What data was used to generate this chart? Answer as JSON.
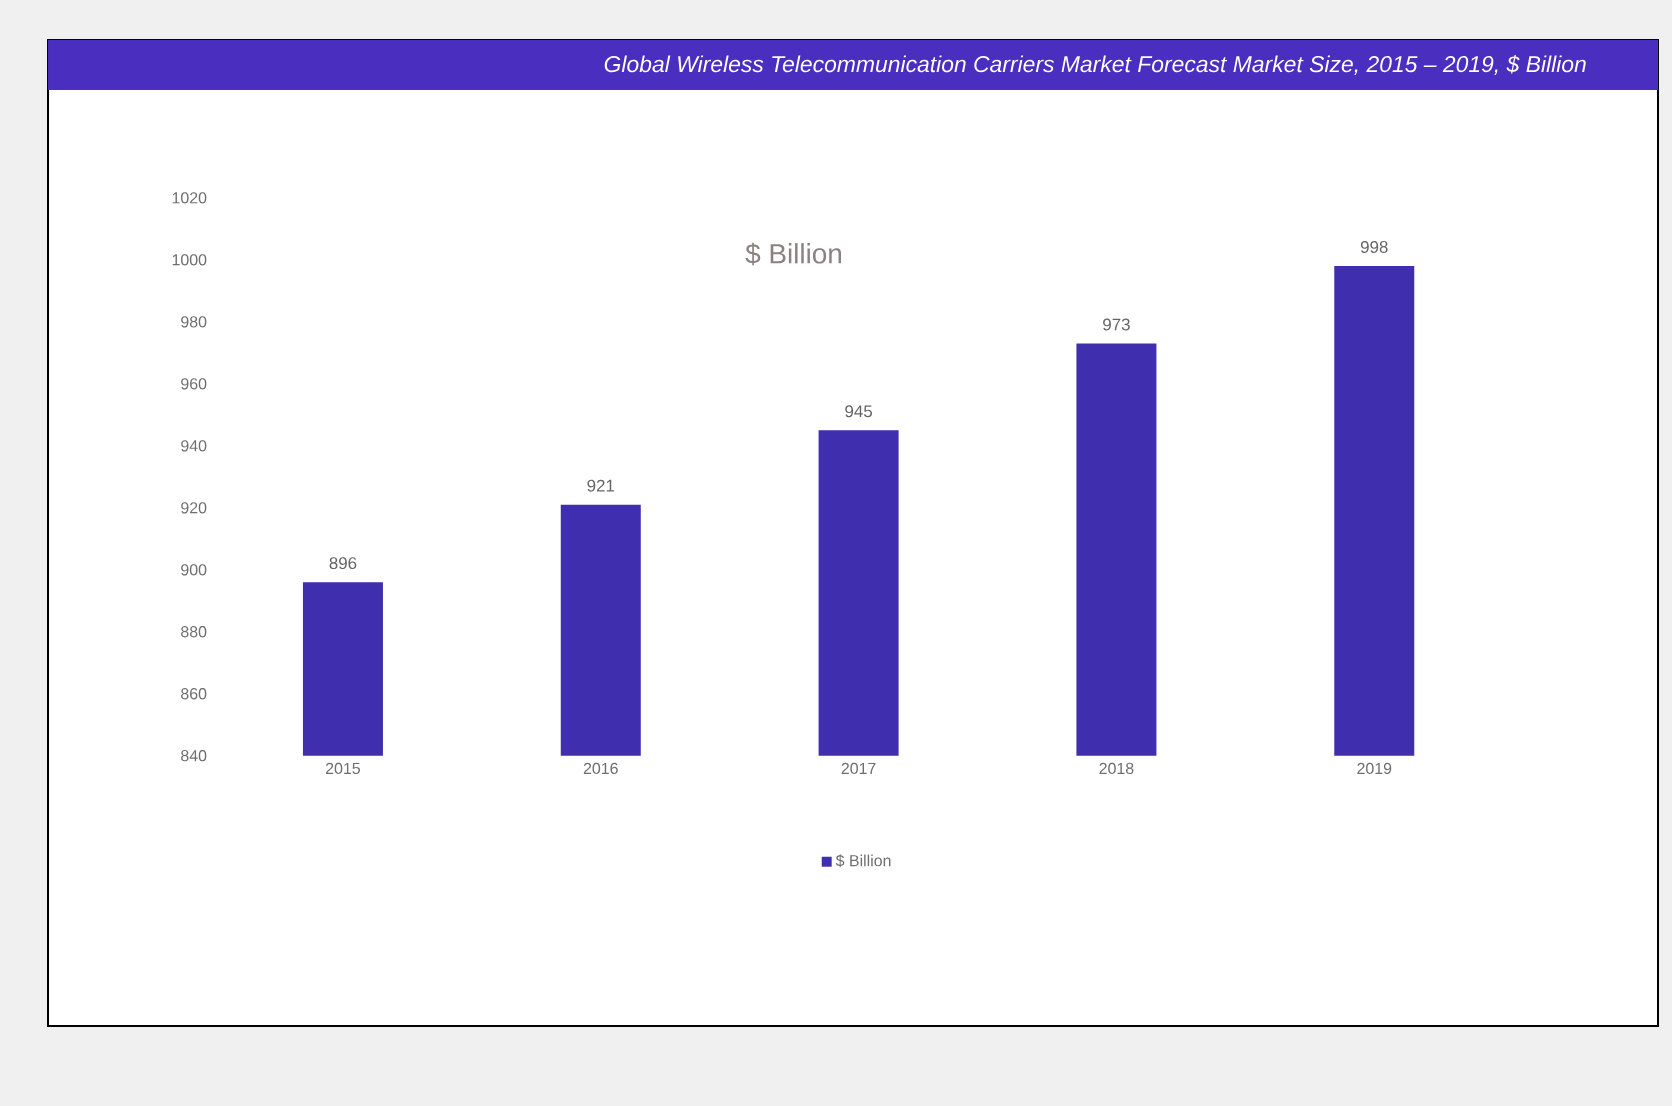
{
  "chart_data": {
    "type": "bar",
    "title": "Global Wireless Telecommunication Carriers Market Forecast Market Size, 2015 – 2019, $ Billion",
    "subtitle": "$ Billion",
    "categories": [
      "2015",
      "2016",
      "2017",
      "2018",
      "2019"
    ],
    "series": [
      {
        "name": "$ Billion",
        "color": "#3f2eae",
        "values": [
          896,
          921,
          945,
          973,
          998
        ]
      }
    ],
    "ylim": [
      840,
      1020
    ],
    "yticks": [
      840,
      860,
      880,
      900,
      920,
      940,
      960,
      980,
      1000,
      1020
    ],
    "data_labels": true,
    "legend": "bottom"
  }
}
